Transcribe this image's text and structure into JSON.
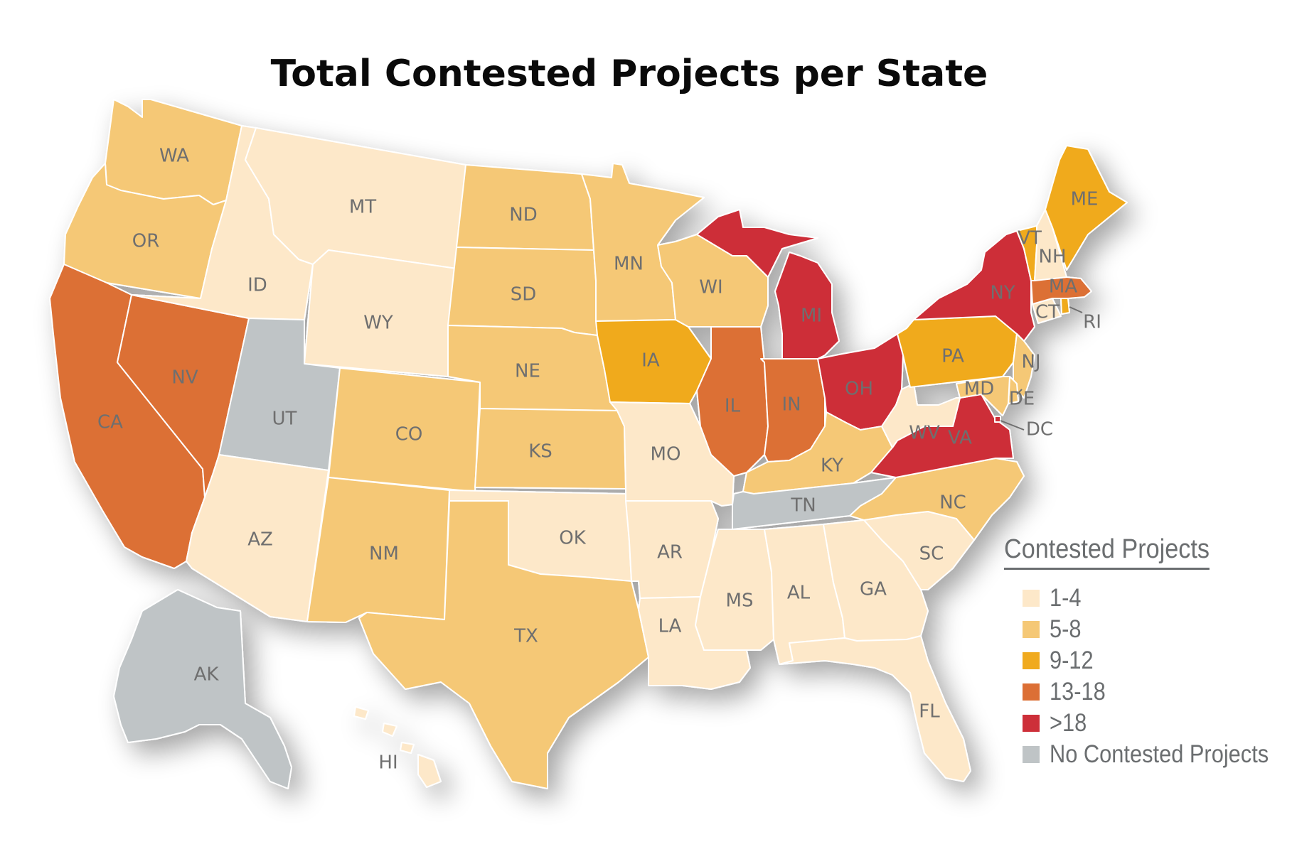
{
  "title": "Total Contested Projects per State",
  "legend": {
    "title": "Contested Projects",
    "items": [
      {
        "label": "1-4",
        "color": "#fde8c9"
      },
      {
        "label": "5-8",
        "color": "#f5c876"
      },
      {
        "label": "9-12",
        "color": "#f0aa1e"
      },
      {
        "label": "13-18",
        "color": "#dc6f35"
      },
      {
        "label": ">18",
        "color": "#cd2f39"
      },
      {
        "label": "No Contested Projects",
        "color": "#bfc4c6"
      }
    ]
  },
  "states": [
    {
      "abbr": "WA",
      "category": "5-8"
    },
    {
      "abbr": "OR",
      "category": "5-8"
    },
    {
      "abbr": "CA",
      "category": "13-18"
    },
    {
      "abbr": "NV",
      "category": "13-18"
    },
    {
      "abbr": "ID",
      "category": "1-4"
    },
    {
      "abbr": "MT",
      "category": "1-4"
    },
    {
      "abbr": "WY",
      "category": "1-4"
    },
    {
      "abbr": "UT",
      "category": "No Contested Projects"
    },
    {
      "abbr": "AZ",
      "category": "1-4"
    },
    {
      "abbr": "CO",
      "category": "5-8"
    },
    {
      "abbr": "NM",
      "category": "5-8"
    },
    {
      "abbr": "ND",
      "category": "5-8"
    },
    {
      "abbr": "SD",
      "category": "5-8"
    },
    {
      "abbr": "NE",
      "category": "5-8"
    },
    {
      "abbr": "KS",
      "category": "5-8"
    },
    {
      "abbr": "OK",
      "category": "1-4"
    },
    {
      "abbr": "TX",
      "category": "5-8"
    },
    {
      "abbr": "MN",
      "category": "5-8"
    },
    {
      "abbr": "IA",
      "category": "9-12"
    },
    {
      "abbr": "MO",
      "category": "1-4"
    },
    {
      "abbr": "AR",
      "category": "1-4"
    },
    {
      "abbr": "LA",
      "category": "1-4"
    },
    {
      "abbr": "WI",
      "category": "5-8"
    },
    {
      "abbr": "IL",
      "category": "13-18"
    },
    {
      "abbr": "MI",
      "category": ">18"
    },
    {
      "abbr": "IN",
      "category": "13-18"
    },
    {
      "abbr": "OH",
      "category": ">18"
    },
    {
      "abbr": "KY",
      "category": "5-8"
    },
    {
      "abbr": "TN",
      "category": "No Contested Projects"
    },
    {
      "abbr": "MS",
      "category": "1-4"
    },
    {
      "abbr": "AL",
      "category": "1-4"
    },
    {
      "abbr": "GA",
      "category": "1-4"
    },
    {
      "abbr": "FL",
      "category": "1-4"
    },
    {
      "abbr": "SC",
      "category": "1-4"
    },
    {
      "abbr": "NC",
      "category": "5-8"
    },
    {
      "abbr": "VA",
      "category": ">18"
    },
    {
      "abbr": "WV",
      "category": "1-4"
    },
    {
      "abbr": "PA",
      "category": "9-12"
    },
    {
      "abbr": "NY",
      "category": ">18"
    },
    {
      "abbr": "NJ",
      "category": "5-8"
    },
    {
      "abbr": "DE",
      "category": "5-8"
    },
    {
      "abbr": "MD",
      "category": "5-8"
    },
    {
      "abbr": "DC",
      "category": ">18"
    },
    {
      "abbr": "CT",
      "category": "1-4"
    },
    {
      "abbr": "RI",
      "category": "9-12"
    },
    {
      "abbr": "MA",
      "category": "13-18"
    },
    {
      "abbr": "VT",
      "category": "9-12"
    },
    {
      "abbr": "NH",
      "category": "1-4"
    },
    {
      "abbr": "ME",
      "category": "9-12"
    },
    {
      "abbr": "AK",
      "category": "No Contested Projects"
    },
    {
      "abbr": "HI",
      "category": "1-4"
    }
  ]
}
